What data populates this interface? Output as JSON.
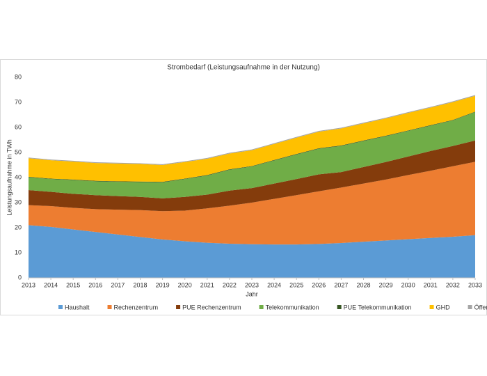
{
  "chart_data": {
    "type": "stacked_area",
    "title": "Strombedarf (Leistungsaufnahme in der Nutzung)",
    "x_label": "Jahr",
    "y_label": "Leistungsaufnahme in TWh",
    "x": [
      2013,
      2014,
      2015,
      2016,
      2017,
      2018,
      2019,
      2020,
      2021,
      2022,
      2023,
      2024,
      2025,
      2026,
      2027,
      2028,
      2029,
      2030,
      2031,
      2032,
      2033
    ],
    "xlim": [
      2013,
      2033
    ],
    "xticks": [
      2013,
      2014,
      2015,
      2016,
      2017,
      2018,
      2019,
      2020,
      2021,
      2022,
      2023,
      2024,
      2025,
      2026,
      2027,
      2028,
      2029,
      2030,
      2031,
      2032,
      2033
    ],
    "ylim": [
      0,
      80
    ],
    "yticks": [
      0,
      10,
      20,
      30,
      40,
      50,
      60,
      70,
      80
    ],
    "grid": false,
    "legend": "bottom",
    "series": [
      {
        "name": "Haushalt",
        "color": "#5b9bd5",
        "values": [
          21,
          20.3,
          19.3,
          18.3,
          17.3,
          16.3,
          15.3,
          14.6,
          14,
          13.6,
          13.4,
          13.3,
          13.3,
          13.5,
          13.9,
          14.4,
          14.9,
          15.4,
          15.9,
          16.4,
          17
        ]
      },
      {
        "name": "Rechenzentrum",
        "color": "#ed7d31",
        "values": [
          8,
          8.3,
          8.6,
          9.1,
          9.9,
          10.7,
          11.3,
          12.2,
          13.7,
          15.2,
          16.6,
          18.2,
          19.7,
          21,
          22.1,
          23.2,
          24.3,
          25.6,
          26.8,
          28.1,
          29.3
        ]
      },
      {
        "name": "PUE Rechenzentrum",
        "color": "#843c0c",
        "values": [
          6,
          5.7,
          5.6,
          5.6,
          5.4,
          5.3,
          5.1,
          5.5,
          5.5,
          6,
          5.8,
          6.1,
          6.4,
          6.8,
          6.2,
          6.6,
          7,
          7.4,
          7.9,
          8.1,
          8.5
        ]
      },
      {
        "name": "Telekommunikation",
        "color": "#70ad47",
        "values": [
          5.1,
          5.1,
          5.5,
          5.5,
          5.7,
          5.9,
          6.4,
          7.1,
          7.6,
          8.3,
          8.6,
          9.2,
          9.8,
          10.2,
          10.4,
          10.4,
          10.3,
          10.2,
          10.1,
          10.2,
          11.3
        ]
      },
      {
        "name": "PUE Telekommunikation",
        "color": "#375623",
        "values": [
          0.2,
          0.2,
          0.2,
          0.2,
          0.2,
          0.2,
          0.2,
          0.2,
          0.2,
          0.2,
          0.2,
          0.2,
          0.2,
          0.2,
          0.2,
          0.2,
          0.2,
          0.2,
          0.2,
          0.2,
          0.2
        ]
      },
      {
        "name": "GHD",
        "color": "#ffc000",
        "values": [
          7.4,
          7.3,
          7.2,
          7.1,
          7.1,
          7,
          6.7,
          6.6,
          6.5,
          6.3,
          6.3,
          6.4,
          6.5,
          6.6,
          6.8,
          6.8,
          6.9,
          7,
          7,
          7.1,
          6.3
        ]
      },
      {
        "name": "Öffentlichkeit",
        "color": "#a5a5a5",
        "values": [
          0.3,
          0.3,
          0.3,
          0.3,
          0.3,
          0.3,
          0.3,
          0.3,
          0.3,
          0.3,
          0.3,
          0.3,
          0.3,
          0.3,
          0.3,
          0.3,
          0.3,
          0.3,
          0.3,
          0.3,
          0.3
        ]
      }
    ]
  }
}
